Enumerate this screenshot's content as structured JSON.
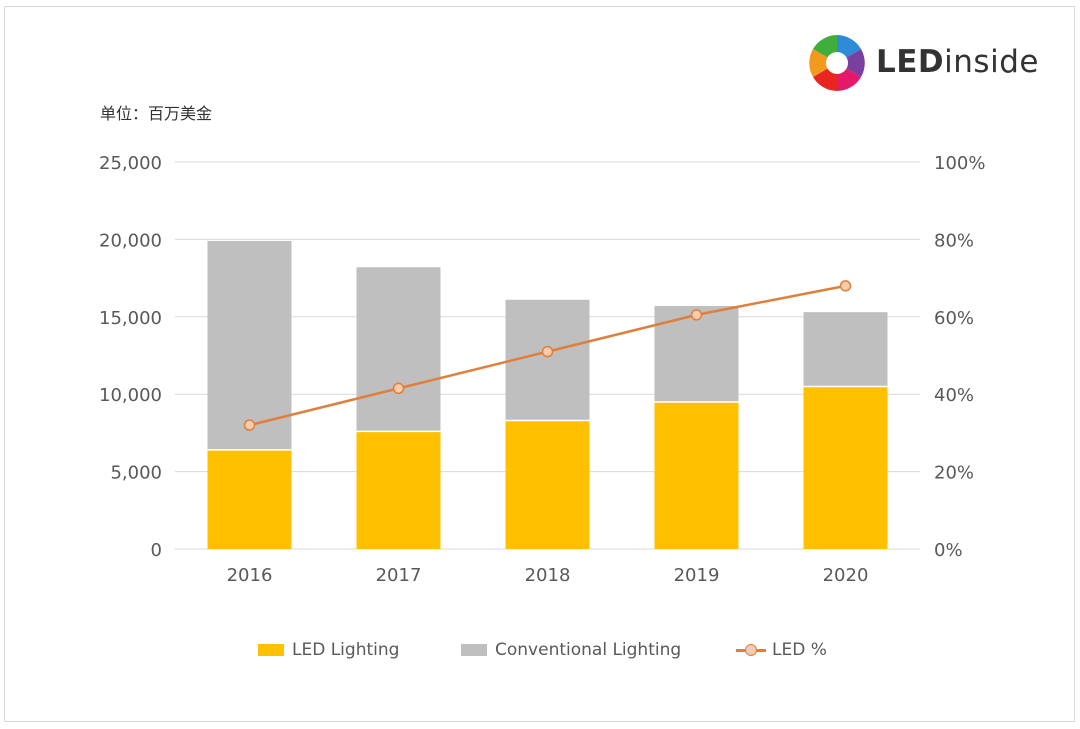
{
  "unit_label": "单位：百万美金",
  "logo": {
    "bold": "LED",
    "rest": "inside"
  },
  "colors": {
    "led": "#FFC000",
    "conventional": "#BFBFBF",
    "line": "#E07F3B",
    "marker_fill": "#F8CBAD",
    "grid": "#D9D9D9"
  },
  "chart_data": {
    "type": "bar",
    "stacked": true,
    "categories": [
      "2016",
      "2017",
      "2018",
      "2019",
      "2020"
    ],
    "series": [
      {
        "name": "LED Lighting",
        "type": "bar",
        "axis": "left",
        "values": [
          6400,
          7600,
          8300,
          9500,
          10500
        ]
      },
      {
        "name": "Conventional Lighting",
        "type": "bar",
        "axis": "left",
        "values": [
          13500,
          10600,
          7800,
          6200,
          4800
        ]
      },
      {
        "name": "LED %",
        "type": "line",
        "axis": "right",
        "values": [
          32,
          41.5,
          51,
          60.5,
          68
        ]
      }
    ],
    "ylim": [
      0,
      25000
    ],
    "yticks": [
      "0",
      "5,000",
      "10,000",
      "15,000",
      "20,000",
      "25,000"
    ],
    "y2lim": [
      0,
      100
    ],
    "y2ticks": [
      "0%",
      "20%",
      "40%",
      "60%",
      "80%",
      "100%"
    ],
    "grid": true,
    "legend_position": "bottom"
  }
}
